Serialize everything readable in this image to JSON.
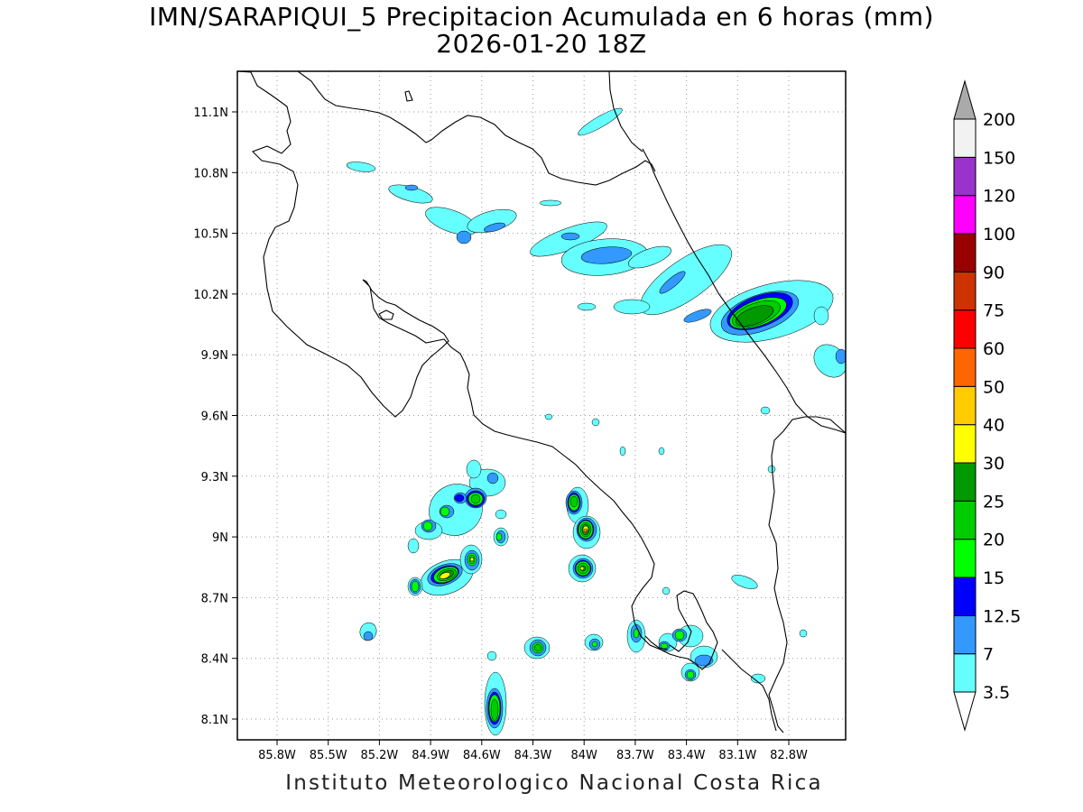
{
  "title": {
    "line1": "IMN/SARAPIQUI_5 Precipitacion Acumulada en 6 horas (mm)",
    "line2": "2026-01-20 18Z"
  },
  "footer": "Instituto Meteorologico Nacional Costa Rica",
  "map": {
    "lat_ticks": [
      "11.1N",
      "10.8N",
      "10.5N",
      "10.2N",
      "9.9N",
      "9.6N",
      "9.3N",
      "9N",
      "8.7N",
      "8.4N",
      "8.1N"
    ],
    "lon_ticks": [
      "85.8W",
      "85.5W",
      "85.2W",
      "84.9W",
      "84.6W",
      "84.3W",
      "84W",
      "83.7W",
      "83.4W",
      "83.1W",
      "82.8W"
    ]
  },
  "colorbar": {
    "levels": [
      "3.5",
      "7",
      "12.5",
      "15",
      "20",
      "25",
      "30",
      "40",
      "50",
      "60",
      "75",
      "90",
      "100",
      "120",
      "150",
      "200"
    ],
    "colors": [
      "#66ffff",
      "#3399ff",
      "#0000ff",
      "#00ff00",
      "#00cc00",
      "#009900",
      "#ffff00",
      "#ffcc00",
      "#ff6600",
      "#ff0000",
      "#cc3300",
      "#990000",
      "#ff00ff",
      "#9933cc",
      "#f2f2f2",
      "#aaaaaa"
    ],
    "below_color": "#ffffff"
  },
  "precip_colors": {
    "l1": "#66ffff",
    "l2": "#3399ff",
    "l3": "#0000ff",
    "l4": "#00ff00",
    "l5": "#00cc00",
    "l6": "#009900",
    "l7": "#ffff00",
    "l8": "#ffcc00",
    "l9": "#ff6600"
  }
}
